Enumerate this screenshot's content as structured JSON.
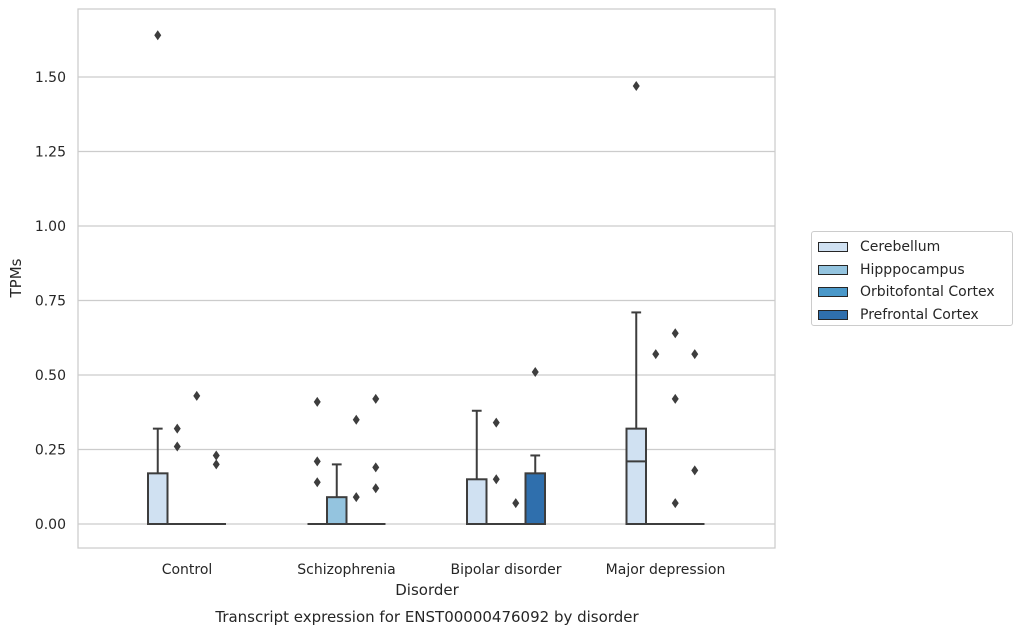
{
  "chart_data": {
    "type": "boxplot",
    "xlabel": "Disorder",
    "ylabel": "TPMs",
    "caption": "Transcript expression for ENST00000476092 by disorder",
    "ylim": [
      -0.08,
      1.72
    ],
    "yticks": [
      0.0,
      0.25,
      0.5,
      0.75,
      1.0,
      1.25,
      1.5
    ],
    "ytick_labels": [
      "0.00",
      "0.25",
      "0.50",
      "0.75",
      "1.00",
      "1.25",
      "1.50"
    ],
    "grid": "horizontal",
    "legend_position": "outside-right",
    "categories": [
      "Control",
      "Schizophrenia",
      "Bipolar disorder",
      "Major depression"
    ],
    "series": [
      {
        "name": "Cerebellum",
        "color": "#d0e1f2",
        "boxes": [
          {
            "q1": 0.0,
            "median": 0.0,
            "q3": 0.17,
            "whisker_low": 0.0,
            "whisker_high": 0.32,
            "outliers": [
              1.64
            ]
          },
          {
            "q1": 0.0,
            "median": 0.0,
            "q3": 0.0,
            "whisker_low": 0.0,
            "whisker_high": 0.0,
            "outliers": [
              0.41,
              0.21,
              0.14
            ]
          },
          {
            "q1": 0.0,
            "median": 0.0,
            "q3": 0.15,
            "whisker_low": 0.0,
            "whisker_high": 0.38,
            "outliers": []
          },
          {
            "q1": 0.0,
            "median": 0.21,
            "q3": 0.32,
            "whisker_low": 0.0,
            "whisker_high": 0.71,
            "outliers": [
              1.47
            ]
          }
        ]
      },
      {
        "name": "Hipppocampus",
        "color": "#94c4df",
        "boxes": [
          {
            "q1": 0.0,
            "median": 0.0,
            "q3": 0.0,
            "whisker_low": 0.0,
            "whisker_high": 0.0,
            "outliers": [
              0.32,
              0.26
            ]
          },
          {
            "q1": 0.0,
            "median": 0.0,
            "q3": 0.09,
            "whisker_low": 0.0,
            "whisker_high": 0.2,
            "outliers": []
          },
          {
            "q1": 0.0,
            "median": 0.0,
            "q3": 0.0,
            "whisker_low": 0.0,
            "whisker_high": 0.0,
            "outliers": [
              0.34,
              0.15
            ]
          },
          {
            "q1": 0.0,
            "median": 0.0,
            "q3": 0.0,
            "whisker_low": 0.0,
            "whisker_high": 0.0,
            "outliers": [
              0.57
            ]
          }
        ]
      },
      {
        "name": "Orbitofontal Cortex",
        "color": "#4a98c9",
        "boxes": [
          {
            "q1": 0.0,
            "median": 0.0,
            "q3": 0.0,
            "whisker_low": 0.0,
            "whisker_high": 0.0,
            "outliers": [
              0.43
            ]
          },
          {
            "q1": 0.0,
            "median": 0.0,
            "q3": 0.0,
            "whisker_low": 0.0,
            "whisker_high": 0.0,
            "outliers": [
              0.35,
              0.09
            ]
          },
          {
            "q1": 0.0,
            "median": 0.0,
            "q3": 0.0,
            "whisker_low": 0.0,
            "whisker_high": 0.0,
            "outliers": [
              0.07
            ]
          },
          {
            "q1": 0.0,
            "median": 0.0,
            "q3": 0.0,
            "whisker_low": 0.0,
            "whisker_high": 0.0,
            "outliers": [
              0.64,
              0.42,
              0.07
            ]
          }
        ]
      },
      {
        "name": "Prefrontal Cortex",
        "color": "#2f6fad",
        "boxes": [
          {
            "q1": 0.0,
            "median": 0.0,
            "q3": 0.0,
            "whisker_low": 0.0,
            "whisker_high": 0.0,
            "outliers": [
              0.23,
              0.2
            ]
          },
          {
            "q1": 0.0,
            "median": 0.0,
            "q3": 0.0,
            "whisker_low": 0.0,
            "whisker_high": 0.0,
            "outliers": [
              0.42,
              0.19,
              0.12
            ]
          },
          {
            "q1": 0.0,
            "median": 0.0,
            "q3": 0.17,
            "whisker_low": 0.0,
            "whisker_high": 0.23,
            "outliers": [
              0.51
            ]
          },
          {
            "q1": 0.0,
            "median": 0.0,
            "q3": 0.0,
            "whisker_low": 0.0,
            "whisker_high": 0.0,
            "outliers": [
              0.57,
              0.18
            ]
          }
        ]
      }
    ]
  }
}
